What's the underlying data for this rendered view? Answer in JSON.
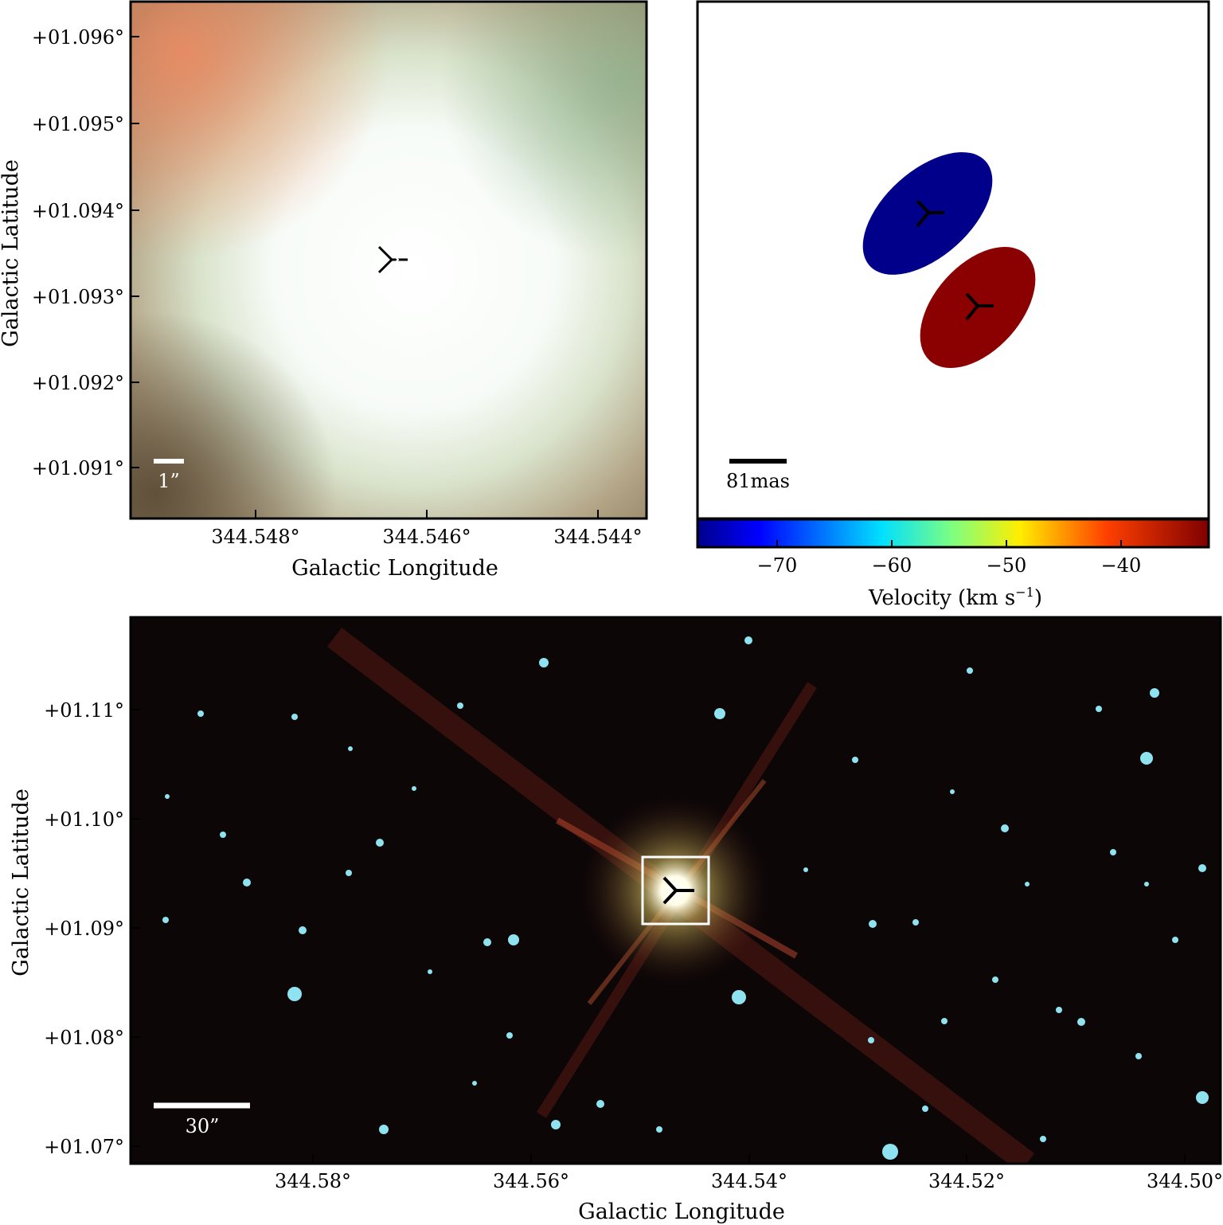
{
  "panel_a": {
    "y_ticks": [
      "+01.096°",
      "+01.095°",
      "+01.094°",
      "+01.093°",
      "+01.092°",
      "+01.091°"
    ],
    "x_ticks": [
      "344.548°",
      "344.546°",
      "344.544°"
    ],
    "y_label": "Galactic Latitude",
    "x_label": "Galactic Longitude",
    "scale_label": "1”"
  },
  "panel_b": {
    "scale_label": "81mas",
    "colorbar_ticks": [
      "−70",
      "−60",
      "−50",
      "−40"
    ],
    "colorbar_label": "Velocity (km s",
    "colorbar_label_sup": "−1",
    "colorbar_label_end": ")",
    "colorbar_range": [
      -77,
      -33
    ],
    "colors": {
      "blue_component": "#00008b",
      "red_component": "#8b0000"
    }
  },
  "panel_c": {
    "y_ticks": [
      "+01.11°",
      "+01.10°",
      "+01.09°",
      "+01.08°",
      "+01.07°"
    ],
    "x_ticks": [
      "344.58°",
      "344.56°",
      "344.54°",
      "344.52°",
      "344.50°"
    ],
    "y_label": "Galactic Latitude",
    "x_label": "Galactic Longitude",
    "scale_label": "30”"
  }
}
